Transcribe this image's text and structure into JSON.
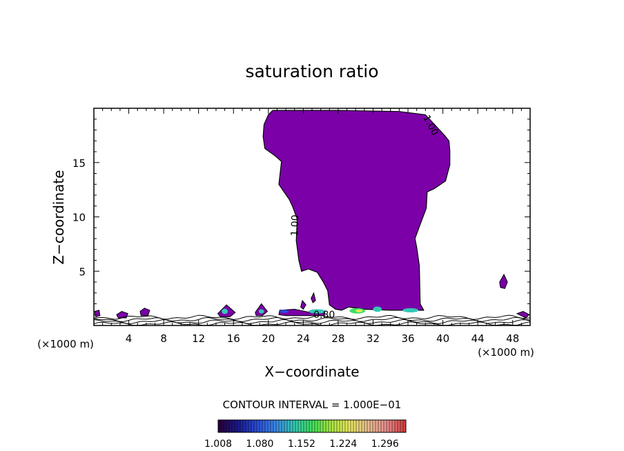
{
  "chart_data": {
    "type": "contour",
    "title": "saturation ratio",
    "xlabel": "X−coordinate",
    "ylabel": "Z−coordinate",
    "x_unit_left": "(×1000 m)",
    "x_unit_right": "(×1000 m)",
    "xlim": [
      0,
      50
    ],
    "ylim": [
      0,
      20
    ],
    "x_ticks": [
      4,
      8,
      12,
      16,
      20,
      24,
      28,
      32,
      36,
      40,
      44,
      48
    ],
    "y_ticks": [
      5,
      10,
      15
    ],
    "x_minor_step": 1,
    "y_minor_step": 1,
    "fill_color": "#7b00a8",
    "contour_labels": [
      {
        "text": "1.00",
        "x": 38.3,
        "y": 18.3,
        "angle": 62
      },
      {
        "text": "1.00",
        "x": 23.4,
        "y": 9.2,
        "angle": -88
      },
      {
        "text": "0.80",
        "x": 26.4,
        "y": 0.7,
        "angle": 0
      }
    ],
    "main_region": [
      [
        20.5,
        19.8
      ],
      [
        28,
        19.8
      ],
      [
        35,
        19.7
      ],
      [
        38,
        19.4
      ],
      [
        39.4,
        18.2
      ],
      [
        40.2,
        17.5
      ],
      [
        40.7,
        17.0
      ],
      [
        40.8,
        16.1
      ],
      [
        40.8,
        14.8
      ],
      [
        40.3,
        13.3
      ],
      [
        39,
        12.6
      ],
      [
        38.2,
        12.3
      ],
      [
        38.1,
        10.8
      ],
      [
        37.3,
        9.1
      ],
      [
        36.8,
        8.0
      ],
      [
        37.0,
        7.2
      ],
      [
        37.3,
        5.5
      ],
      [
        37.4,
        2.0
      ],
      [
        37.8,
        1.4
      ],
      [
        34,
        1.4
      ],
      [
        31,
        1.5
      ],
      [
        29.2,
        1.7
      ],
      [
        28.4,
        1.4
      ],
      [
        27.7,
        1.5
      ],
      [
        27.0,
        1.9
      ],
      [
        26.8,
        3.2
      ],
      [
        26.3,
        4.0
      ],
      [
        25.6,
        4.9
      ],
      [
        24.6,
        5.2
      ],
      [
        23.8,
        5.0
      ],
      [
        23.5,
        6.0
      ],
      [
        23.2,
        7.8
      ],
      [
        23.3,
        9.8
      ],
      [
        22.8,
        10.9
      ],
      [
        22.4,
        11.6
      ],
      [
        21.7,
        12.4
      ],
      [
        21.2,
        13.0
      ],
      [
        21.5,
        15.1
      ],
      [
        20.8,
        15.6
      ],
      [
        19.6,
        16.3
      ],
      [
        19.4,
        17.4
      ],
      [
        19.5,
        18.5
      ],
      [
        20.0,
        19.4
      ]
    ],
    "small_regions": [
      [
        [
          46.5,
          4.0
        ],
        [
          47.0,
          4.7
        ],
        [
          47.4,
          4.0
        ],
        [
          47.1,
          3.4
        ],
        [
          46.6,
          3.5
        ]
      ],
      [
        [
          0.1,
          1.3
        ],
        [
          0.6,
          1.4
        ],
        [
          0.7,
          0.9
        ],
        [
          0.2,
          0.8
        ]
      ],
      [
        [
          2.6,
          1.0
        ],
        [
          3.2,
          1.3
        ],
        [
          3.9,
          1.1
        ],
        [
          3.7,
          0.7
        ],
        [
          2.8,
          0.7
        ]
      ],
      [
        [
          5.3,
          1.3
        ],
        [
          5.8,
          1.6
        ],
        [
          6.4,
          1.4
        ],
        [
          6.2,
          0.9
        ],
        [
          5.4,
          0.9
        ]
      ],
      [
        [
          14.2,
          1.1
        ],
        [
          15.2,
          1.9
        ],
        [
          16.2,
          1.2
        ],
        [
          15.6,
          0.8
        ],
        [
          14.5,
          0.8
        ]
      ],
      [
        [
          18.5,
          1.2
        ],
        [
          19.2,
          2.0
        ],
        [
          19.9,
          1.3
        ],
        [
          19.3,
          0.9
        ],
        [
          18.6,
          0.9
        ]
      ],
      [
        [
          21.3,
          1.4
        ],
        [
          23.0,
          1.5
        ],
        [
          24.8,
          1.2
        ],
        [
          26.5,
          1.3
        ],
        [
          26.4,
          0.9
        ],
        [
          22.0,
          0.9
        ],
        [
          21.2,
          1.0
        ]
      ],
      [
        [
          23.7,
          1.7
        ],
        [
          23.9,
          2.3
        ],
        [
          24.3,
          1.9
        ],
        [
          24.0,
          1.5
        ]
      ],
      [
        [
          24.9,
          2.5
        ],
        [
          25.2,
          3.0
        ],
        [
          25.4,
          2.3
        ],
        [
          25.1,
          2.1
        ]
      ],
      [
        [
          48.5,
          1.1
        ],
        [
          49.2,
          1.3
        ],
        [
          49.9,
          1.0
        ],
        [
          49.5,
          0.7
        ]
      ]
    ],
    "hot_spots": [
      {
        "x": 30.2,
        "y": 1.35,
        "rx": 0.9,
        "ry": 0.25,
        "level": 3
      },
      {
        "x": 30.4,
        "y": 1.35,
        "rx": 0.4,
        "ry": 0.12,
        "level": 4
      },
      {
        "x": 32.5,
        "y": 1.5,
        "rx": 0.5,
        "ry": 0.25,
        "level": 2
      },
      {
        "x": 36.3,
        "y": 1.4,
        "rx": 0.9,
        "ry": 0.2,
        "level": 2
      },
      {
        "x": 25.6,
        "y": 1.3,
        "rx": 1.0,
        "ry": 0.2,
        "level": 2
      },
      {
        "x": 15.0,
        "y": 1.3,
        "rx": 0.35,
        "ry": 0.25,
        "level": 2
      },
      {
        "x": 19.2,
        "y": 1.3,
        "rx": 0.3,
        "ry": 0.2,
        "level": 2
      },
      {
        "x": 21.8,
        "y": 1.3,
        "rx": 0.5,
        "ry": 0.15,
        "level": 1
      }
    ],
    "contour_interval_label": "CONTOUR INTERVAL = 1.000E−01",
    "colorbar": {
      "labels": [
        "1.008",
        "1.080",
        "1.152",
        "1.224",
        "1.296"
      ],
      "min": 1.008,
      "max": 1.332,
      "colors": [
        "#2a0040",
        "#1a1a8c",
        "#2a4bd8",
        "#3a86e8",
        "#34c8b8",
        "#3ee060",
        "#a8e840",
        "#e8e860",
        "#e8c090",
        "#e89090",
        "#d84040"
      ]
    }
  }
}
